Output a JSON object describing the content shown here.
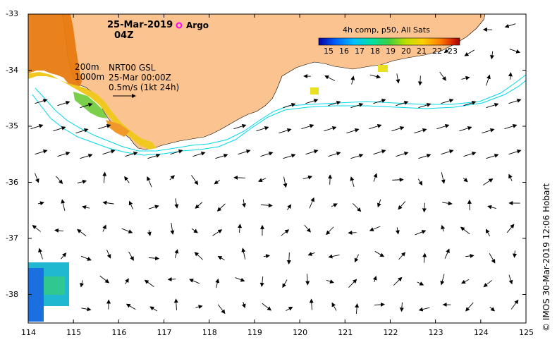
{
  "header": {
    "date": "25-Mar-2019",
    "time": "04Z",
    "argo_label": "Argo"
  },
  "colorbar": {
    "title": "4h comp, p50, All Sats",
    "ticks": [
      "15",
      "16",
      "17",
      "18",
      "19",
      "20",
      "21",
      "22",
      "23"
    ],
    "stops": [
      "#0000a0",
      "#0060ff",
      "#00c0ff",
      "#00e0a0",
      "#40d040",
      "#c0e000",
      "#ffd000",
      "#ff8000",
      "#e03000",
      "#a00000"
    ]
  },
  "contours": {
    "shallow": "200m",
    "deep": "1000m"
  },
  "current_info": {
    "line1": "NRT00 GSL",
    "line2": "25-Mar 00:00Z",
    "line3": "0.5m/s (1kt 24h)"
  },
  "axes": {
    "x_ticks": [
      "114",
      "115",
      "116",
      "117",
      "118",
      "119",
      "120",
      "121",
      "122",
      "123",
      "124",
      "125"
    ],
    "y_ticks": [
      "-33",
      "-34",
      "-35",
      "-36",
      "-37",
      "-38"
    ]
  },
  "credit": "© IMOS 30-Mar-2019 12:06 Hobart",
  "colors": {
    "land": "#fac38f",
    "contour": "#00d8e8",
    "argo": "#ff00ff",
    "frame": "#000000"
  }
}
